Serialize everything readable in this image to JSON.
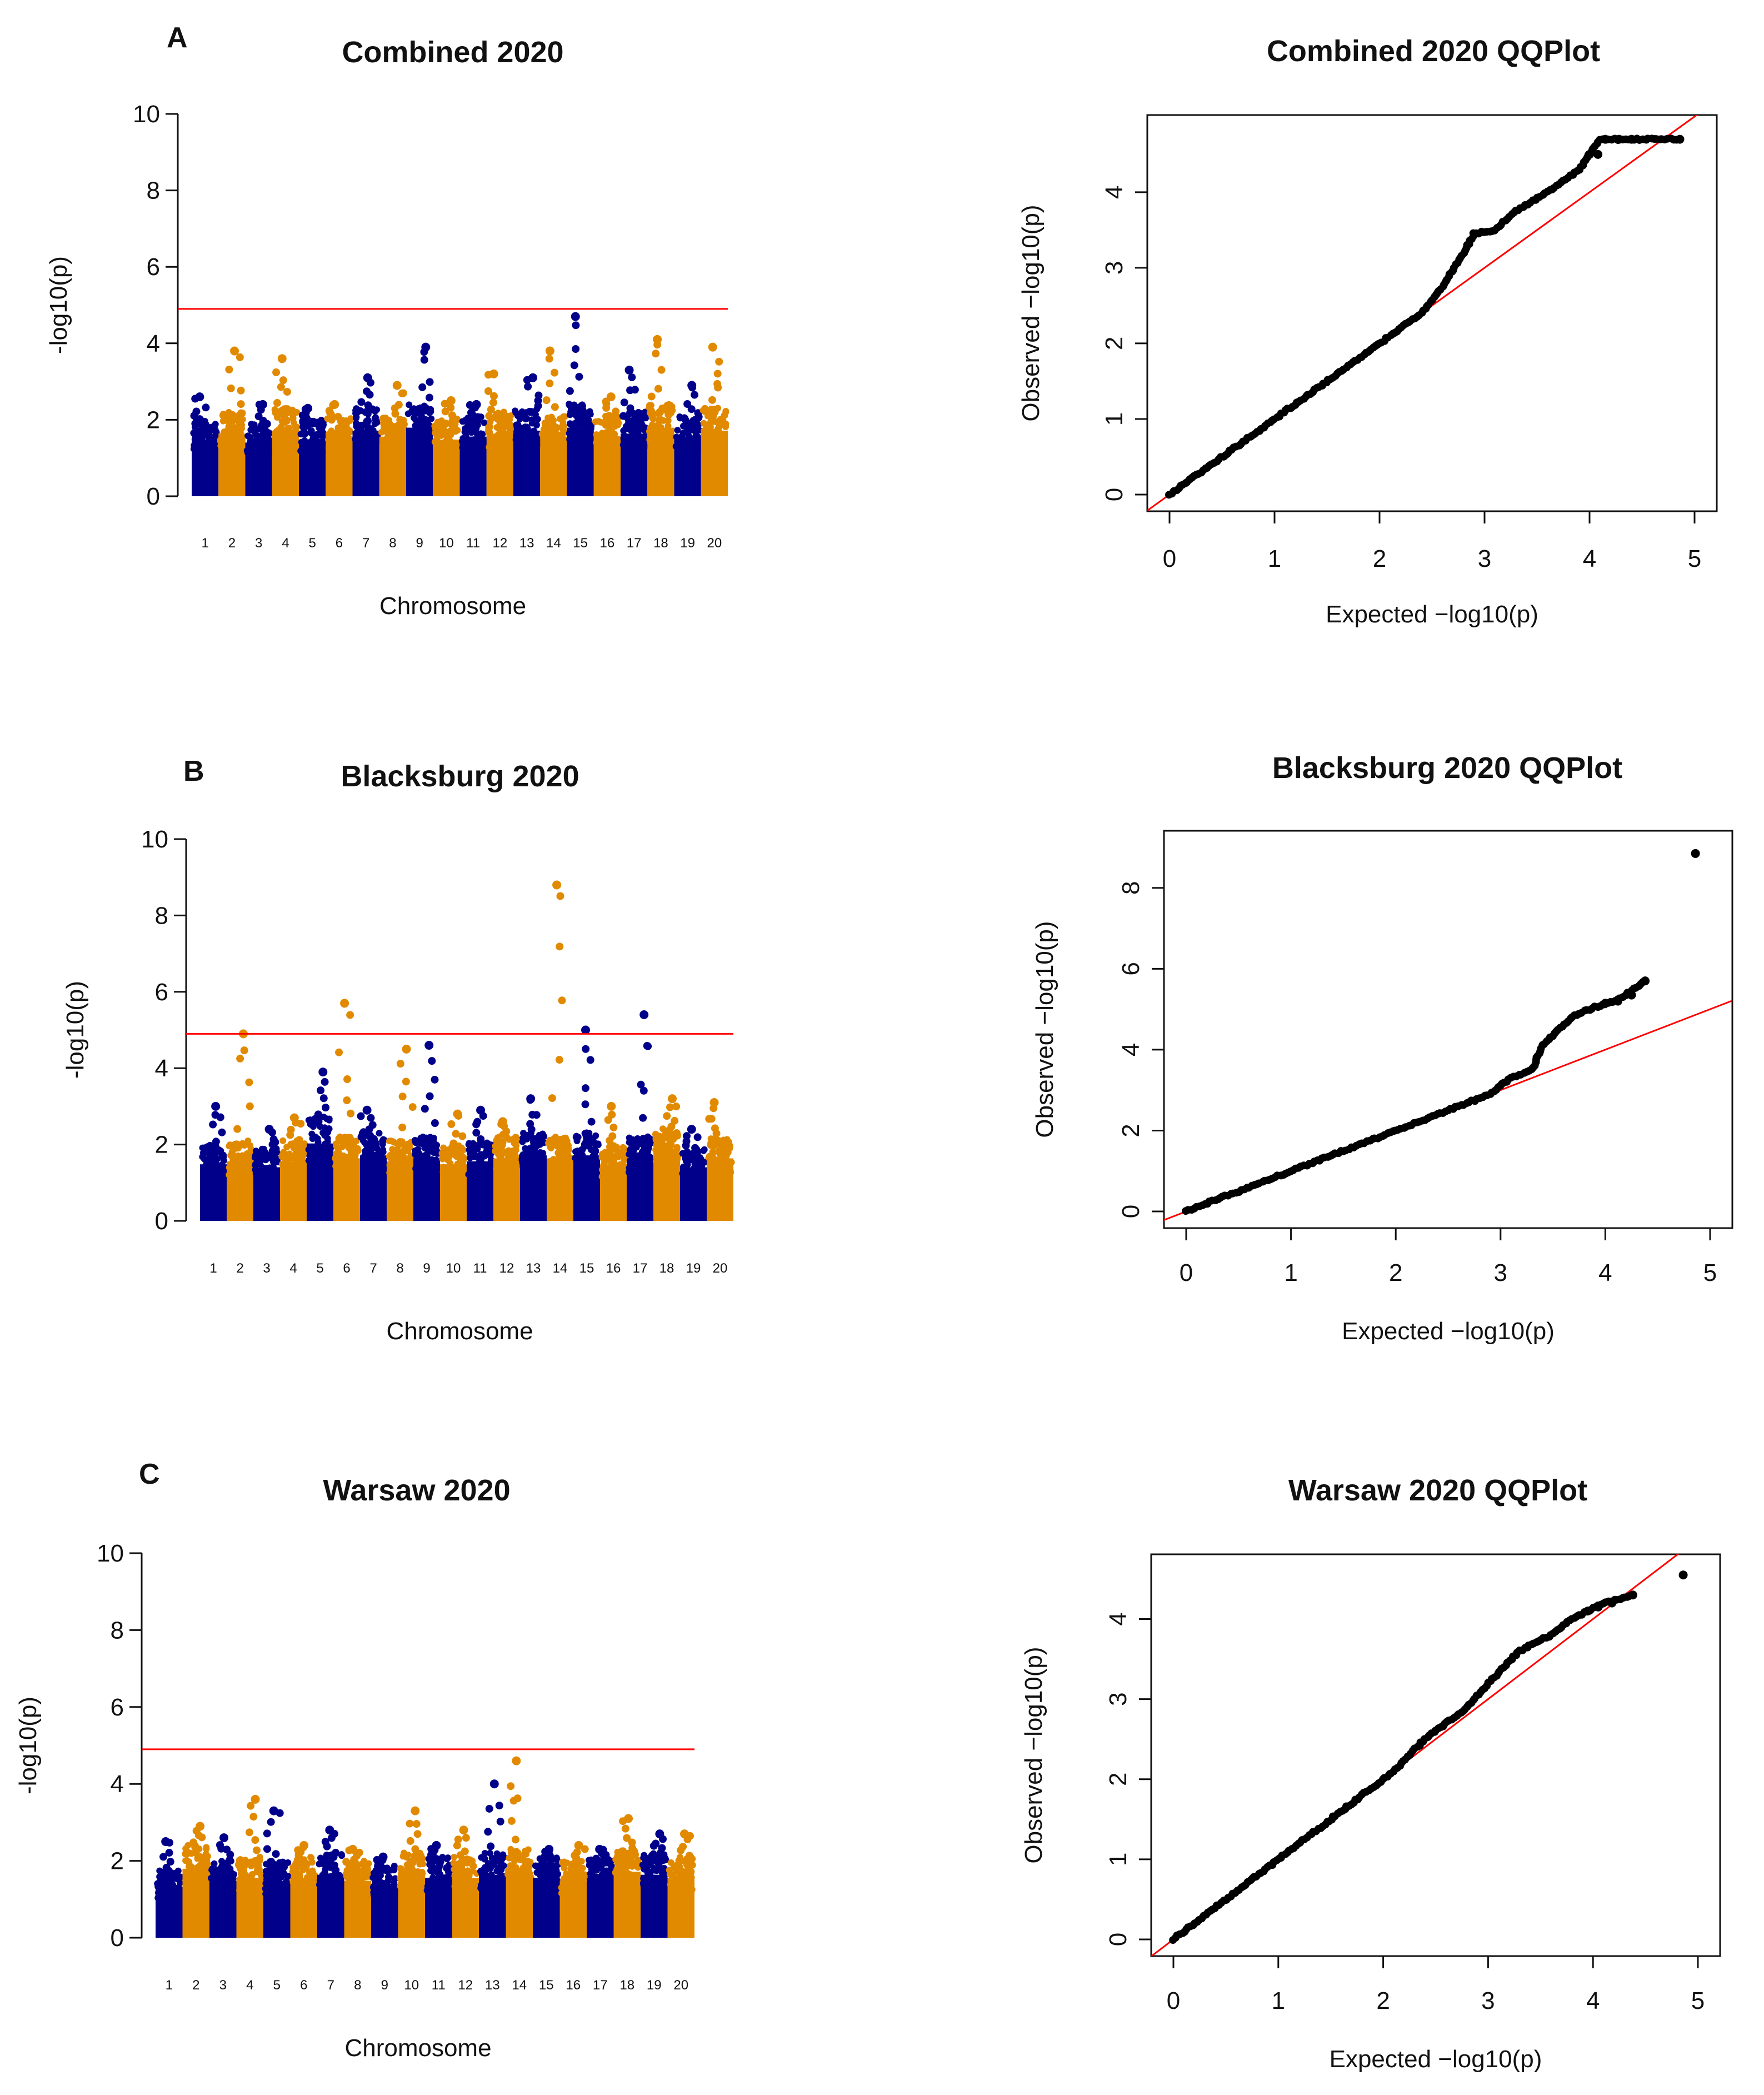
{
  "chart_data": [
    {
      "type": "scatter",
      "subtype": "manhattan",
      "panel": "A",
      "title": "Combined 2020",
      "xlabel": "Chromosome",
      "ylabel": "-log10(p)",
      "ylim": [
        0,
        10
      ],
      "yticks": [
        "0",
        "2",
        "4",
        "6",
        "8",
        "10"
      ],
      "threshold": 4.9,
      "threshold_color": "#ff0000",
      "colors": [
        "#00008b",
        "#e18a00"
      ],
      "chromosomes": [
        "1",
        "2",
        "3",
        "4",
        "5",
        "6",
        "7",
        "8",
        "9",
        "10",
        "11",
        "12",
        "13",
        "14",
        "15",
        "16",
        "17",
        "18",
        "19",
        "20"
      ],
      "chr_peak": [
        2.6,
        3.8,
        2.4,
        3.6,
        2.3,
        2.4,
        3.1,
        2.9,
        3.9,
        2.5,
        2.4,
        3.2,
        3.1,
        3.8,
        4.7,
        2.6,
        3.3,
        4.1,
        2.9,
        3.9
      ],
      "chr_base": [
        1.9,
        2.1,
        1.8,
        2.2,
        1.9,
        2.0,
        2.2,
        2.0,
        2.3,
        1.9,
        2.0,
        2.1,
        2.2,
        2.0,
        2.3,
        2.0,
        2.1,
        2.3,
        2.0,
        2.2
      ]
    },
    {
      "type": "scatter",
      "subtype": "qqplot",
      "panel": "A",
      "title": "Combined 2020 QQPlot",
      "xlabel": "Expected  −log10(p)",
      "ylabel": "Observed  −log10(p)",
      "xlim": [
        0,
        5
      ],
      "ylim": [
        0,
        4.8
      ],
      "xticks": [
        "0",
        "1",
        "2",
        "3",
        "4",
        "5"
      ],
      "yticks": [
        "0",
        "1",
        "2",
        "3",
        "4"
      ],
      "curve": [
        [
          0,
          0
        ],
        [
          1,
          1
        ],
        [
          2,
          2
        ],
        [
          2.4,
          2.4
        ],
        [
          2.6,
          2.75
        ],
        [
          2.8,
          3.2
        ],
        [
          2.9,
          3.45
        ],
        [
          3.1,
          3.5
        ],
        [
          3.3,
          3.75
        ],
        [
          3.6,
          4.0
        ],
        [
          3.9,
          4.3
        ],
        [
          4.1,
          4.7
        ],
        [
          4.4,
          4.7
        ],
        [
          4.85,
          4.7
        ]
      ],
      "tail_points": [
        [
          4.0,
          4.5
        ],
        [
          4.08,
          4.5
        ],
        [
          4.15,
          4.7
        ],
        [
          4.28,
          4.7
        ],
        [
          4.4,
          4.7
        ],
        [
          4.86,
          4.7
        ]
      ]
    },
    {
      "type": "scatter",
      "subtype": "manhattan",
      "panel": "B",
      "title": "Blacksburg 2020",
      "xlabel": "Chromosome",
      "ylabel": "-log10(p)",
      "ylim": [
        0,
        10
      ],
      "yticks": [
        "0",
        "2",
        "4",
        "6",
        "8",
        "10"
      ],
      "threshold": 4.9,
      "threshold_color": "#ff0000",
      "colors": [
        "#00008b",
        "#e18a00"
      ],
      "chromosomes": [
        "1",
        "2",
        "3",
        "4",
        "5",
        "6",
        "7",
        "8",
        "9",
        "10",
        "11",
        "12",
        "13",
        "14",
        "15",
        "16",
        "17",
        "18",
        "19",
        "20"
      ],
      "chr_peak": [
        3.0,
        4.9,
        2.4,
        2.7,
        3.9,
        5.7,
        2.9,
        4.5,
        4.6,
        2.8,
        2.9,
        2.6,
        3.2,
        8.8,
        5.0,
        3.0,
        5.4,
        3.2,
        2.4,
        3.1
      ],
      "chr_base": [
        1.9,
        2.0,
        1.8,
        2.0,
        2.6,
        2.1,
        2.2,
        2.0,
        2.1,
        1.9,
        2.0,
        2.1,
        2.2,
        2.1,
        2.2,
        1.9,
        2.1,
        2.3,
        1.8,
        2.1
      ]
    },
    {
      "type": "scatter",
      "subtype": "qqplot",
      "panel": "B",
      "title": "Blacksburg 2020 QQPlot",
      "xlabel": "Expected  −log10(p)",
      "ylabel": "Observed  −log10(p)",
      "xlim": [
        0,
        5
      ],
      "ylim": [
        0,
        9
      ],
      "xticks": [
        "0",
        "1",
        "2",
        "3",
        "4",
        "5"
      ],
      "yticks": [
        "0",
        "2",
        "4",
        "6",
        "8"
      ],
      "curve": [
        [
          0,
          0
        ],
        [
          1,
          1
        ],
        [
          2,
          2
        ],
        [
          2.5,
          2.5
        ],
        [
          2.9,
          2.9
        ],
        [
          3.1,
          3.3
        ],
        [
          3.3,
          3.5
        ],
        [
          3.4,
          4.1
        ],
        [
          3.55,
          4.5
        ],
        [
          3.7,
          4.85
        ],
        [
          3.9,
          5.05
        ],
        [
          4.1,
          5.2
        ],
        [
          4.38,
          5.7
        ]
      ],
      "tail_points": [
        [
          4.0,
          5.15
        ],
        [
          4.12,
          5.2
        ],
        [
          4.25,
          5.35
        ],
        [
          4.38,
          5.7
        ],
        [
          4.86,
          8.85
        ]
      ]
    },
    {
      "type": "scatter",
      "subtype": "manhattan",
      "panel": "C",
      "title": "Warsaw 2020",
      "xlabel": "Chromosome",
      "ylabel": "-log10(p)",
      "ylim": [
        0,
        10
      ],
      "yticks": [
        "0",
        "2",
        "4",
        "6",
        "8",
        "10"
      ],
      "threshold": 4.9,
      "threshold_color": "#ff0000",
      "colors": [
        "#00008b",
        "#e18a00"
      ],
      "chromosomes": [
        "1",
        "2",
        "3",
        "4",
        "5",
        "6",
        "7",
        "8",
        "9",
        "10",
        "11",
        "12",
        "13",
        "14",
        "15",
        "16",
        "17",
        "18",
        "19",
        "20"
      ],
      "chr_peak": [
        2.5,
        2.9,
        2.6,
        3.6,
        3.3,
        2.4,
        2.8,
        2.3,
        2.1,
        3.3,
        2.4,
        2.8,
        4.0,
        4.6,
        2.3,
        2.4,
        2.3,
        3.1,
        2.7,
        2.7
      ],
      "chr_base": [
        1.7,
        2.3,
        1.9,
        2.0,
        1.9,
        2.0,
        2.1,
        1.9,
        1.8,
        2.1,
        2.0,
        2.0,
        2.1,
        2.2,
        2.0,
        1.9,
        2.0,
        2.2,
        2.1,
        2.0
      ]
    },
    {
      "type": "scatter",
      "subtype": "qqplot",
      "panel": "C",
      "title": "Warsaw 2020 QQPlot",
      "xlabel": "Expected  −log10(p)",
      "ylabel": "Observed  −log10(p)",
      "xlim": [
        0,
        5
      ],
      "ylim": [
        0,
        4.6
      ],
      "xticks": [
        "0",
        "1",
        "2",
        "3",
        "4",
        "5"
      ],
      "yticks": [
        "0",
        "1",
        "2",
        "3",
        "4"
      ],
      "curve": [
        [
          0,
          0
        ],
        [
          1,
          1
        ],
        [
          1.8,
          1.8
        ],
        [
          2.1,
          2.1
        ],
        [
          2.4,
          2.5
        ],
        [
          2.8,
          2.9
        ],
        [
          3.0,
          3.2
        ],
        [
          3.3,
          3.6
        ],
        [
          3.6,
          3.8
        ],
        [
          3.8,
          4.0
        ],
        [
          4.1,
          4.2
        ],
        [
          4.38,
          4.3
        ]
      ],
      "tail_points": [
        [
          3.95,
          4.1
        ],
        [
          4.05,
          4.15
        ],
        [
          4.18,
          4.2
        ],
        [
          4.38,
          4.3
        ],
        [
          4.86,
          4.55
        ]
      ]
    }
  ]
}
